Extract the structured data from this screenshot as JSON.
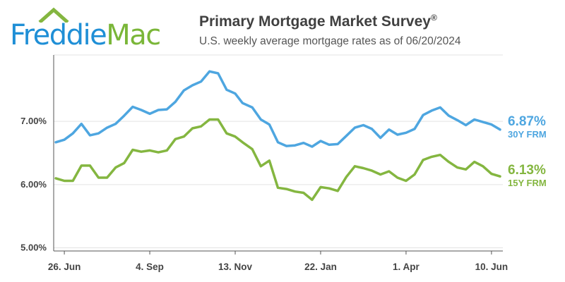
{
  "logo": {
    "part1": "Freddie",
    "part2": "Mac"
  },
  "header": {
    "title": "Primary Mortgage Market Survey",
    "registered": "®",
    "subtitle": "U.S. weekly average mortgage rates as of 06/20/2024"
  },
  "colors": {
    "rate30": "#4ea6e0",
    "rate15": "#84b640",
    "grid": "#e3e3e3",
    "axis": "#555555",
    "text": "#444444"
  },
  "chart_data": {
    "type": "line",
    "x": [
      "2023-06-22",
      "2023-06-29",
      "2023-07-06",
      "2023-07-13",
      "2023-07-20",
      "2023-07-27",
      "2023-08-03",
      "2023-08-10",
      "2023-08-17",
      "2023-08-24",
      "2023-08-31",
      "2023-09-07",
      "2023-09-14",
      "2023-09-21",
      "2023-09-28",
      "2023-10-05",
      "2023-10-12",
      "2023-10-19",
      "2023-10-26",
      "2023-11-02",
      "2023-11-09",
      "2023-11-16",
      "2023-11-22",
      "2023-11-30",
      "2023-12-07",
      "2023-12-14",
      "2023-12-21",
      "2023-12-28",
      "2024-01-04",
      "2024-01-11",
      "2024-01-18",
      "2024-01-25",
      "2024-02-01",
      "2024-02-08",
      "2024-02-15",
      "2024-02-22",
      "2024-02-29",
      "2024-03-07",
      "2024-03-14",
      "2024-03-21",
      "2024-03-28",
      "2024-04-04",
      "2024-04-11",
      "2024-04-18",
      "2024-04-25",
      "2024-05-02",
      "2024-05-09",
      "2024-05-16",
      "2024-05-23",
      "2024-05-30",
      "2024-06-06",
      "2024-06-13",
      "2024-06-20"
    ],
    "series": [
      {
        "key": "rate30",
        "name": "30Y FRM",
        "end_label": "6.87%",
        "values": [
          6.67,
          6.71,
          6.81,
          6.96,
          6.78,
          6.81,
          6.9,
          6.96,
          7.09,
          7.23,
          7.18,
          7.12,
          7.18,
          7.19,
          7.31,
          7.49,
          7.57,
          7.63,
          7.79,
          7.76,
          7.5,
          7.44,
          7.29,
          7.22,
          7.03,
          6.95,
          6.67,
          6.61,
          6.62,
          6.66,
          6.6,
          6.69,
          6.63,
          6.64,
          6.77,
          6.9,
          6.94,
          6.88,
          6.74,
          6.87,
          6.79,
          6.82,
          6.88,
          7.1,
          7.17,
          7.22,
          7.09,
          7.02,
          6.94,
          7.03,
          6.99,
          6.95,
          6.87
        ]
      },
      {
        "key": "rate15",
        "name": "15Y FRM",
        "end_label": "6.13%",
        "values": [
          6.1,
          6.06,
          6.06,
          6.3,
          6.3,
          6.11,
          6.11,
          6.27,
          6.34,
          6.55,
          6.52,
          6.54,
          6.51,
          6.54,
          6.72,
          6.76,
          6.89,
          6.92,
          7.03,
          7.03,
          6.81,
          6.76,
          6.67,
          6.56,
          6.29,
          6.38,
          5.95,
          5.93,
          5.89,
          5.87,
          5.76,
          5.96,
          5.94,
          5.9,
          6.12,
          6.29,
          6.26,
          6.22,
          6.16,
          6.21,
          6.11,
          6.06,
          6.16,
          6.39,
          6.44,
          6.47,
          6.36,
          6.27,
          6.24,
          6.36,
          6.29,
          6.17,
          6.13
        ]
      }
    ],
    "yticks": [
      {
        "value": 5.0,
        "label": "5.00%"
      },
      {
        "value": 6.0,
        "label": "6.00%"
      },
      {
        "value": 7.0,
        "label": "7.00%"
      }
    ],
    "xticks": [
      {
        "x": "2023-06-29",
        "label": "26. Jun"
      },
      {
        "x": "2023-09-07",
        "label": "4. Sep"
      },
      {
        "x": "2023-11-16",
        "label": "13. Nov"
      },
      {
        "x": "2024-01-25",
        "label": "22. Jan"
      },
      {
        "x": "2024-04-04",
        "label": "1. Apr"
      },
      {
        "x": "2024-06-13",
        "label": "10. Jun"
      }
    ],
    "ylim": [
      4.95,
      8.05
    ],
    "grid": "horizontal",
    "legend": "end-labels-right"
  }
}
